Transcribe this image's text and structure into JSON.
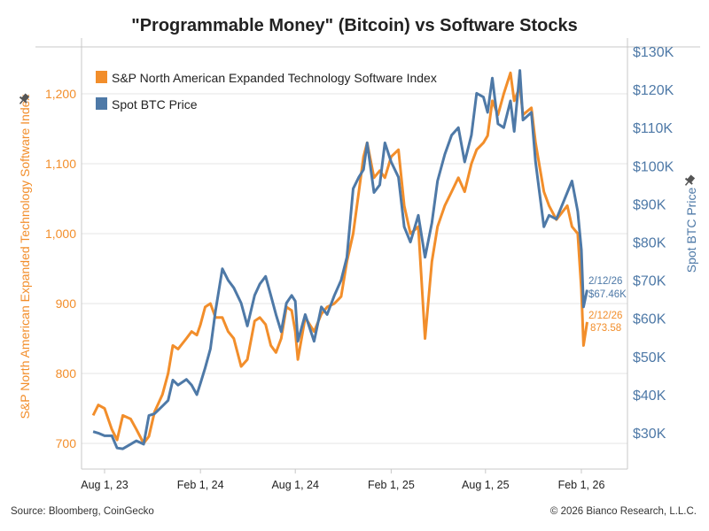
{
  "title": "\"Programmable Money\" (Bitcoin) vs Software Stocks",
  "source": "Source: Bloomberg, CoinGecko",
  "copyright": "© 2026 Bianco Research, L.L.C.",
  "colors": {
    "software": "#f28e2b",
    "btc": "#4e79a7",
    "grid": "#e6e6e6",
    "axis": "#c8c8c8"
  },
  "chart_data": {
    "type": "line",
    "title": "\"Programmable Money\" (Bitcoin) vs Software Stocks",
    "ylabel_left": "S&P North American Expanded Technology Software Index",
    "ylabel_right": "Spot BTC Price",
    "ylim_left": [
      680,
      1270
    ],
    "ylim_right": [
      25,
      132
    ],
    "yticks_left": [
      "700",
      "800",
      "900",
      "1,000",
      "1,100",
      "1,200"
    ],
    "yticks_left_values": [
      700,
      800,
      900,
      1000,
      1100,
      1200
    ],
    "yticks_right": [
      "$30K",
      "$40K",
      "$50K",
      "$60K",
      "$70K",
      "$80K",
      "$90K",
      "$100K",
      "$110K",
      "$120K",
      "$130K"
    ],
    "yticks_right_values": [
      30,
      40,
      50,
      60,
      70,
      80,
      90,
      100,
      110,
      120,
      130
    ],
    "xticks": [
      "Aug 1, 23",
      "Feb 1, 24",
      "Aug 1, 24",
      "Feb 1, 25",
      "Aug 1, 25",
      "Feb 1, 26"
    ],
    "xtick_dates": [
      "2023-08-01",
      "2024-02-01",
      "2024-08-01",
      "2025-02-01",
      "2025-08-01",
      "2026-02-01"
    ],
    "grid": "horizontal",
    "legend_placement": "top-left",
    "x": [
      "2023-07-10",
      "2023-07-20",
      "2023-08-01",
      "2023-08-15",
      "2023-08-25",
      "2023-09-05",
      "2023-09-20",
      "2023-10-01",
      "2023-10-15",
      "2023-10-25",
      "2023-11-05",
      "2023-11-20",
      "2023-12-01",
      "2023-12-10",
      "2023-12-20",
      "2024-01-05",
      "2024-01-15",
      "2024-01-25",
      "2024-02-01",
      "2024-02-10",
      "2024-02-20",
      "2024-03-01",
      "2024-03-14",
      "2024-03-25",
      "2024-04-05",
      "2024-04-19",
      "2024-05-01",
      "2024-05-15",
      "2024-05-25",
      "2024-06-05",
      "2024-06-15",
      "2024-06-25",
      "2024-07-05",
      "2024-07-15",
      "2024-07-25",
      "2024-08-01",
      "2024-08-06",
      "2024-08-20",
      "2024-09-06",
      "2024-09-20",
      "2024-10-01",
      "2024-10-15",
      "2024-10-28",
      "2024-11-08",
      "2024-11-20",
      "2024-12-01",
      "2024-12-10",
      "2024-12-17",
      "2024-12-30",
      "2025-01-10",
      "2025-01-20",
      "2025-02-01",
      "2025-02-15",
      "2025-02-26",
      "2025-03-10",
      "2025-03-25",
      "2025-04-07",
      "2025-04-20",
      "2025-05-01",
      "2025-05-15",
      "2025-05-28",
      "2025-06-10",
      "2025-06-22",
      "2025-07-05",
      "2025-07-15",
      "2025-07-28",
      "2025-08-05",
      "2025-08-14",
      "2025-08-25",
      "2025-09-05",
      "2025-09-18",
      "2025-09-25",
      "2025-10-06",
      "2025-10-12",
      "2025-10-28",
      "2025-11-05",
      "2025-11-21",
      "2025-12-01",
      "2025-12-15",
      "2026-01-05",
      "2026-01-14",
      "2026-01-25",
      "2026-02-01",
      "2026-02-05",
      "2026-02-12"
    ],
    "series": [
      {
        "name": "S&P North American Expanded Technology Software Index",
        "axis": "left",
        "values": [
          740,
          755,
          750,
          720,
          705,
          740,
          735,
          720,
          700,
          710,
          745,
          770,
          800,
          840,
          835,
          850,
          860,
          855,
          870,
          895,
          900,
          880,
          880,
          860,
          850,
          810,
          820,
          875,
          880,
          870,
          840,
          830,
          850,
          895,
          890,
          860,
          820,
          880,
          860,
          885,
          895,
          900,
          910,
          960,
          1000,
          1060,
          1110,
          1130,
          1080,
          1090,
          1080,
          1110,
          1120,
          1040,
          1000,
          1010,
          850,
          960,
          1010,
          1040,
          1060,
          1080,
          1060,
          1100,
          1120,
          1130,
          1140,
          1190,
          1170,
          1200,
          1230,
          1190,
          1210,
          1170,
          1180,
          1130,
          1060,
          1040,
          1020,
          1040,
          1010,
          1000,
          920,
          840,
          873.58
        ]
      },
      {
        "name": "Spot BTC Price",
        "axis": "right",
        "unit": "$K",
        "values": [
          30.3,
          29.9,
          29.2,
          29.2,
          26.0,
          25.8,
          27.0,
          27.9,
          27.0,
          34.5,
          35.0,
          37.0,
          38.5,
          43.8,
          42.5,
          44.0,
          42.5,
          40.0,
          43.0,
          47.0,
          52.0,
          62.0,
          73.0,
          70.0,
          68.0,
          64.0,
          58.0,
          66.0,
          69.0,
          71.0,
          66.0,
          61.0,
          56.5,
          64.0,
          66.0,
          64.5,
          54.0,
          61.0,
          54.0,
          63.0,
          61.0,
          66.0,
          70.0,
          76.0,
          94.0,
          97.0,
          99.0,
          106.0,
          93.0,
          95.0,
          106.0,
          101.0,
          97.0,
          84.0,
          80.0,
          87.0,
          76.0,
          85.0,
          96.0,
          103.0,
          108.0,
          110.0,
          101.0,
          108.0,
          119.0,
          118.0,
          114.0,
          123.0,
          111.0,
          110.0,
          117.0,
          109.0,
          125.0,
          112.0,
          114.0,
          101.0,
          84.0,
          87.0,
          86.0,
          93.0,
          96.0,
          88.0,
          78.0,
          63.0,
          67.46
        ]
      }
    ],
    "annotations": [
      {
        "series": "Spot BTC Price",
        "date_label": "2/12/26",
        "value_label": "$67.46K"
      },
      {
        "series": "S&P North American Expanded Technology Software Index",
        "date_label": "2/12/26",
        "value_label": "873.58"
      }
    ]
  }
}
